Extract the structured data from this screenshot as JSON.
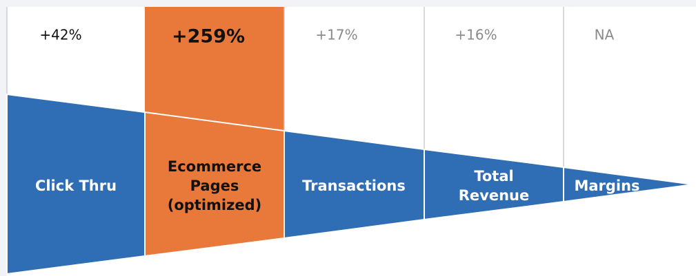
{
  "stages": [
    {
      "change": "+42%",
      "lines": [
        "Click Thru"
      ]
    },
    {
      "change": "+259%",
      "lines": [
        "Ecommerce",
        "Pages",
        "(optimized)"
      ]
    },
    {
      "change": "+17%",
      "lines": [
        "Transactions"
      ]
    },
    {
      "change": "+16%",
      "lines": [
        "Total",
        "Revenue"
      ]
    },
    {
      "change": "NA",
      "lines": [
        "Margins"
      ]
    }
  ]
}
